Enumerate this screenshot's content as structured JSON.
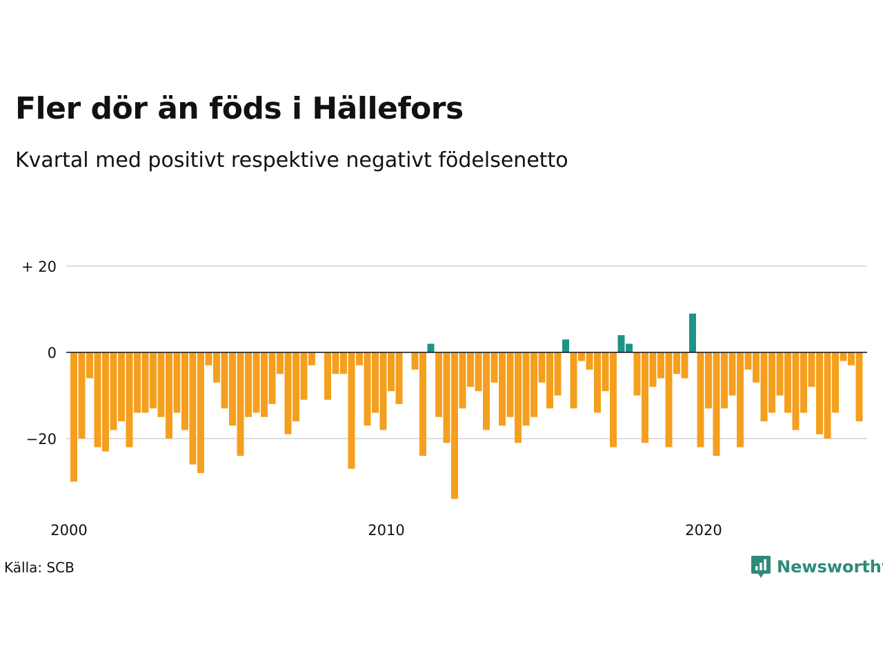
{
  "header": {
    "title": "Fler dör än föds i Hällefors",
    "subtitle": "Kvartal med positivt respektive negativt födelsenetto"
  },
  "footer": {
    "source": "Källa: SCB",
    "brand": "Newsworthy"
  },
  "colors": {
    "positive": "#1f9385",
    "negative": "#f59f1f",
    "grid": "#dddddd",
    "zero_line": "#111111",
    "brand": "#2e8a7a"
  },
  "chart_data": {
    "type": "bar",
    "x_start_year": 2000,
    "x_ticks": [
      {
        "value": 2000,
        "label": "2000"
      },
      {
        "value": 2010,
        "label": "2010"
      },
      {
        "value": 2020,
        "label": "2020"
      }
    ],
    "y_ticks": [
      {
        "value": 20,
        "label": "+ 20"
      },
      {
        "value": 0,
        "label": "0"
      },
      {
        "value": -20,
        "label": "−20"
      }
    ],
    "ylim": [
      -35,
      20
    ],
    "grid": true,
    "values": [
      -30,
      -20,
      -6,
      -22,
      -23,
      -18,
      -16,
      -22,
      -14,
      -14,
      -13,
      -15,
      -20,
      -14,
      -18,
      -26,
      -28,
      -3,
      -7,
      -13,
      -17,
      -24,
      -15,
      -14,
      -15,
      -12,
      -5,
      -19,
      -16,
      -11,
      -3,
      0,
      -11,
      -5,
      -5,
      -27,
      -3,
      -17,
      -14,
      -18,
      -9,
      -12,
      0,
      -4,
      -24,
      2,
      -15,
      -21,
      -34,
      -13,
      -8,
      -9,
      -18,
      -7,
      -17,
      -15,
      -21,
      -17,
      -15,
      -7,
      -13,
      -10,
      3,
      -13,
      -2,
      -4,
      -14,
      -9,
      -22,
      4,
      2,
      -10,
      -21,
      -8,
      -6,
      -22,
      -5,
      -6,
      9,
      -22,
      -13,
      -24,
      -13,
      -10,
      -22,
      -4,
      -7,
      -16,
      -14,
      -10,
      -14,
      -18,
      -14,
      -8,
      -19,
      -20,
      -14,
      -2,
      -3,
      -16
    ]
  }
}
